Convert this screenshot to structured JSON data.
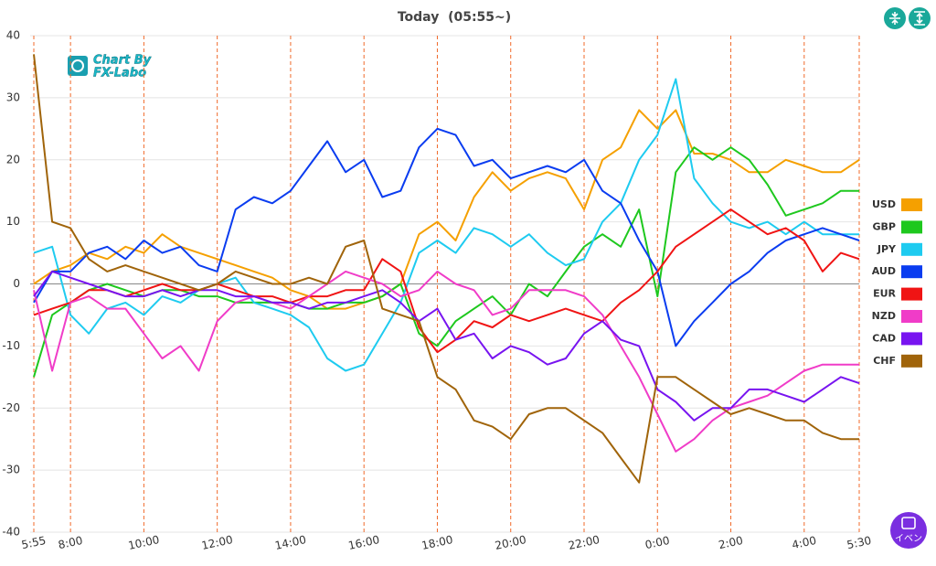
{
  "title": "Today  (05:55~)",
  "watermark": [
    "Chart By",
    "FX-Labo"
  ],
  "event_button": "イベン",
  "chart_data": {
    "type": "line",
    "categories": [
      "5:55",
      null,
      "8:00",
      null,
      null,
      null,
      "10:00",
      null,
      null,
      null,
      "12:00",
      null,
      null,
      null,
      "14:00",
      null,
      null,
      null,
      "16:00",
      null,
      null,
      null,
      "18:00",
      null,
      null,
      null,
      "20:00",
      null,
      null,
      null,
      "22:00",
      null,
      null,
      null,
      "0:00",
      null,
      null,
      null,
      "2:00",
      null,
      null,
      null,
      "4:00",
      null,
      null,
      "5:30"
    ],
    "ylim": [
      -40,
      40
    ],
    "yticks": [
      -40,
      -30,
      -20,
      -10,
      0,
      10,
      20,
      30,
      40
    ],
    "grid": true,
    "legend": "right",
    "series": [
      {
        "name": "USD",
        "color": "#f5a000",
        "values": [
          0,
          2,
          3,
          5,
          4,
          6,
          5,
          8,
          6,
          5,
          4,
          3,
          2,
          1,
          -1,
          -2,
          -4,
          -4,
          -3,
          -2,
          0,
          8,
          10,
          7,
          14,
          18,
          15,
          17,
          18,
          17,
          12,
          20,
          22,
          28,
          25,
          28,
          21,
          21,
          20,
          18,
          18,
          20,
          19,
          18,
          18,
          20
        ]
      },
      {
        "name": "GBP",
        "color": "#1ec81e",
        "values": [
          -15,
          -5,
          -3,
          -1,
          0,
          -1,
          -2,
          -1,
          -1,
          -2,
          -2,
          -3,
          -3,
          -3,
          -3,
          -4,
          -4,
          -3,
          -3,
          -2,
          0,
          -8,
          -10,
          -6,
          -4,
          -2,
          -5,
          0,
          -2,
          2,
          6,
          8,
          6,
          12,
          -2,
          18,
          22,
          20,
          22,
          20,
          16,
          11,
          12,
          13,
          15,
          15
        ]
      },
      {
        "name": "JPY",
        "color": "#1ecbf0",
        "values": [
          5,
          6,
          -5,
          -8,
          -4,
          -3,
          -5,
          -2,
          -3,
          -1,
          0,
          1,
          -3,
          -4,
          -5,
          -7,
          -12,
          -14,
          -13,
          -8,
          -3,
          5,
          7,
          5,
          9,
          8,
          6,
          8,
          5,
          3,
          4,
          10,
          13,
          20,
          24,
          33,
          17,
          13,
          10,
          9,
          10,
          8,
          10,
          8,
          8,
          8
        ]
      },
      {
        "name": "AUD",
        "color": "#0a3cf0",
        "values": [
          -3,
          2,
          2,
          5,
          6,
          4,
          7,
          5,
          6,
          3,
          2,
          12,
          14,
          13,
          15,
          19,
          23,
          18,
          20,
          14,
          15,
          22,
          25,
          24,
          19,
          20,
          17,
          18,
          19,
          18,
          20,
          15,
          13,
          7,
          2,
          -10,
          -6,
          -3,
          0,
          2,
          5,
          7,
          8,
          9,
          8,
          7
        ]
      },
      {
        "name": "EUR",
        "color": "#f01414",
        "values": [
          -5,
          -4,
          -3,
          -1,
          -1,
          -2,
          -1,
          0,
          -1,
          -1,
          0,
          -1,
          -2,
          -2,
          -3,
          -2,
          -2,
          -1,
          -1,
          4,
          2,
          -7,
          -11,
          -9,
          -6,
          -7,
          -5,
          -6,
          -5,
          -4,
          -5,
          -6,
          -3,
          -1,
          2,
          6,
          8,
          10,
          12,
          10,
          8,
          9,
          7,
          2,
          5,
          4
        ]
      },
      {
        "name": "NZD",
        "color": "#f03cc8",
        "values": [
          -1,
          -14,
          -3,
          -2,
          -4,
          -4,
          -8,
          -12,
          -10,
          -14,
          -6,
          -3,
          -2,
          -3,
          -4,
          -2,
          0,
          2,
          1,
          0,
          -2,
          -1,
          2,
          0,
          -1,
          -5,
          -4,
          -1,
          -1,
          -1,
          -2,
          -5,
          -10,
          -15,
          -21,
          -27,
          -25,
          -22,
          -20,
          -19,
          -18,
          -16,
          -14,
          -13,
          -13,
          -13
        ]
      },
      {
        "name": "CAD",
        "color": "#7814f0",
        "values": [
          -2,
          2,
          1,
          0,
          -1,
          -2,
          -2,
          -1,
          -2,
          -1,
          -1,
          -2,
          -2,
          -3,
          -3,
          -4,
          -3,
          -3,
          -2,
          -1,
          -3,
          -6,
          -4,
          -9,
          -8,
          -12,
          -10,
          -11,
          -13,
          -12,
          -8,
          -6,
          -9,
          -10,
          -17,
          -19,
          -22,
          -20,
          -20,
          -17,
          -17,
          -18,
          -19,
          -17,
          -15,
          -16
        ]
      },
      {
        "name": "CHF",
        "color": "#a0640a",
        "values": [
          37,
          10,
          9,
          4,
          2,
          3,
          2,
          1,
          0,
          -1,
          0,
          2,
          1,
          0,
          0,
          1,
          0,
          6,
          7,
          -4,
          -5,
          -6,
          -15,
          -17,
          -22,
          -23,
          -25,
          -21,
          -20,
          -20,
          -22,
          -24,
          -28,
          -32,
          -15,
          -15,
          -17,
          -19,
          -21,
          -20,
          -21,
          -22,
          -22,
          -24,
          -25,
          -25
        ]
      }
    ]
  }
}
